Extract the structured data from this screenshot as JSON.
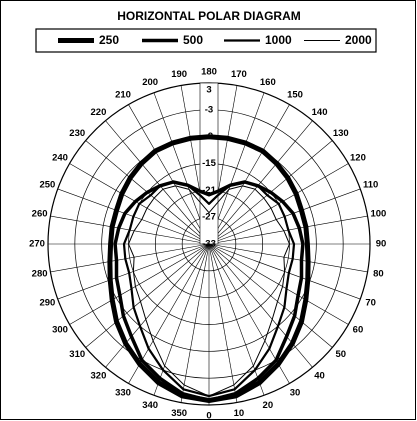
{
  "chart_data": {
    "type": "polar",
    "title": "HORIZONTAL POLAR DIAGRAM",
    "angles": [
      0,
      10,
      20,
      30,
      40,
      50,
      60,
      70,
      80,
      90,
      100,
      110,
      120,
      130,
      140,
      150,
      160,
      170,
      180,
      190,
      200,
      210,
      220,
      230,
      240,
      250,
      260,
      270,
      280,
      290,
      300,
      310,
      320,
      330,
      340,
      350
    ],
    "rlim": [
      -33,
      3
    ],
    "rticks": [
      3,
      -3,
      -9,
      -15,
      -21,
      -27,
      -33
    ],
    "grid": true,
    "series": [
      {
        "name": "250",
        "color": "#000000",
        "width": 5,
        "values": [
          2,
          1.5,
          0,
          -2,
          -4,
          -6,
          -8,
          -9.5,
          -10.5,
          -11,
          -11,
          -11,
          -10.5,
          -10,
          -9.5,
          -9,
          -9,
          -9,
          -9,
          -9,
          -9,
          -9,
          -9.5,
          -10,
          -10.5,
          -11,
          -11,
          -11,
          -10.5,
          -9.5,
          -8,
          -6,
          -4,
          -2,
          0,
          1.5
        ]
      },
      {
        "name": "500",
        "color": "#000000",
        "width": 3.5,
        "values": [
          2,
          1,
          -1,
          -3,
          -6,
          -8,
          -10,
          -11,
          -12,
          -12,
          -12.5,
          -13,
          -14,
          -15,
          -16,
          -17,
          -19,
          -21,
          -22,
          -21,
          -19,
          -17,
          -16,
          -15,
          -14,
          -13,
          -12.5,
          -12,
          -12,
          -11,
          -10,
          -8,
          -6,
          -3,
          -1,
          1
        ]
      },
      {
        "name": "1000",
        "color": "#000000",
        "width": 2.2,
        "values": [
          1,
          0,
          -3,
          -6,
          -9,
          -11,
          -13,
          -14,
          -14,
          -14,
          -15,
          -15,
          -15,
          -16,
          -16,
          -17,
          -19,
          -22,
          -24,
          -22,
          -19,
          -17,
          -16,
          -16,
          -15,
          -15,
          -15,
          -14,
          -14,
          -14,
          -13,
          -11,
          -9,
          -6,
          -3,
          0
        ]
      },
      {
        "name": "2000",
        "color": "#000000",
        "width": 1,
        "values": [
          1,
          -1,
          -4,
          -8,
          -11,
          -13,
          -14,
          -15,
          -16,
          -15,
          -16,
          -17,
          -17,
          -17,
          -17,
          -18,
          -20,
          -24,
          -26,
          -24,
          -20,
          -18,
          -17,
          -17,
          -17,
          -17,
          -16,
          -15,
          -16,
          -15,
          -14,
          -13,
          -11,
          -8,
          -4,
          -1
        ]
      }
    ]
  }
}
